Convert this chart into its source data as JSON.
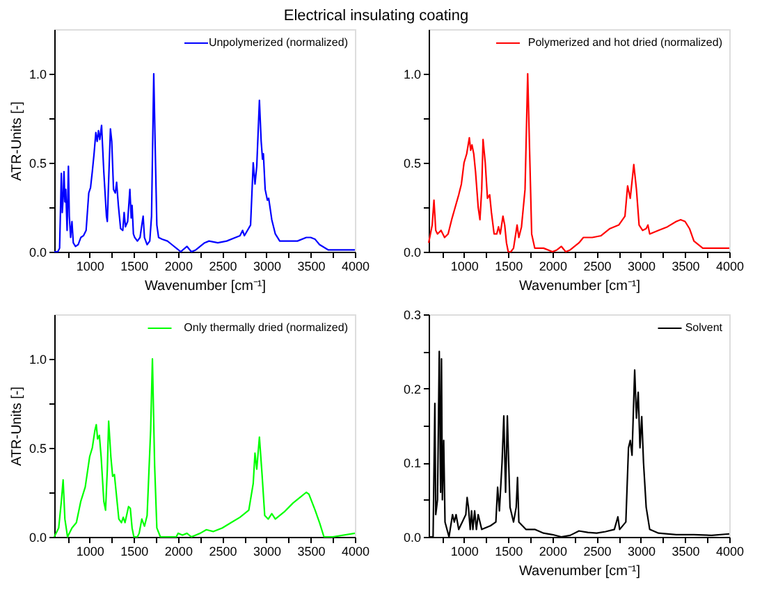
{
  "chart_data": [
    {
      "type": "line",
      "title": "Electrical insulating coating",
      "xlabel": "Wavenumber [cm⁻¹]",
      "ylabel": "ATR-Units [-]",
      "xlim": [
        600,
        4000
      ],
      "ylim": [
        0,
        1.25
      ],
      "xticks": [
        {
          "value": 750,
          "label": null
        },
        1000,
        {
          "value": 1250,
          "label": null
        },
        1500,
        {
          "value": 1750,
          "label": null
        },
        2000,
        {
          "value": 2250,
          "label": null
        },
        2500,
        {
          "value": 2750,
          "label": null
        },
        3000,
        {
          "value": 3250,
          "label": null
        },
        3500,
        {
          "value": 3750,
          "label": null
        },
        4000
      ],
      "yticks": [
        {
          "value": 0,
          "label": "0.0"
        },
        {
          "value": 0.25,
          "label": null
        },
        {
          "value": 0.5,
          "label": "0.5"
        },
        {
          "value": 0.75,
          "label": null
        },
        {
          "value": 1.0,
          "label": "1.0"
        }
      ],
      "grid": false,
      "legend": "top right",
      "marker": "none",
      "line_style": "solid",
      "series": [
        {
          "name": "Unpolymerized (normalized)",
          "color": "#0000ff",
          "x": [
            600,
            640,
            660,
            680,
            690,
            700,
            710,
            720,
            730,
            745,
            760,
            770,
            785,
            800,
            815,
            840,
            870,
            900,
            930,
            960,
            990,
            1010,
            1030,
            1050,
            1070,
            1085,
            1100,
            1115,
            1135,
            1160,
            1190,
            1200,
            1215,
            1235,
            1250,
            1270,
            1290,
            1305,
            1325,
            1350,
            1375,
            1390,
            1405,
            1430,
            1455,
            1470,
            1480,
            1495,
            1510,
            1540,
            1570,
            1590,
            1605,
            1620,
            1650,
            1680,
            1700,
            1725,
            1745,
            1760,
            1780,
            1820,
            1880,
            1930,
            1980,
            2030,
            2100,
            2150,
            2200,
            2300,
            2350,
            2450,
            2550,
            2650,
            2700,
            2730,
            2750,
            2820,
            2850,
            2870,
            2890,
            2920,
            2940,
            2955,
            2965,
            2985,
            3010,
            3025,
            3060,
            3100,
            3150,
            3250,
            3350,
            3450,
            3500,
            3550,
            3600,
            3700,
            3800,
            4000
          ],
          "values": [
            0,
            0,
            0.02,
            0.44,
            0.22,
            0.3,
            0.45,
            0.28,
            0.35,
            0.12,
            0.48,
            0.2,
            0.08,
            0.17,
            0.05,
            0.03,
            0.04,
            0.08,
            0.09,
            0.12,
            0.33,
            0.36,
            0.45,
            0.55,
            0.67,
            0.62,
            0.68,
            0.63,
            0.71,
            0.45,
            0.2,
            0.17,
            0.4,
            0.69,
            0.62,
            0.35,
            0.33,
            0.39,
            0.26,
            0.13,
            0.12,
            0.22,
            0.14,
            0.17,
            0.35,
            0.19,
            0.26,
            0.1,
            0.08,
            0.06,
            0.08,
            0.15,
            0.2,
            0.08,
            0.04,
            0.06,
            0.2,
            1.0,
            0.5,
            0.15,
            0.08,
            0.07,
            0.06,
            0.04,
            0.02,
            0,
            0.03,
            0,
            0.01,
            0.05,
            0.06,
            0.05,
            0.06,
            0.08,
            0.09,
            0.12,
            0.09,
            0.15,
            0.5,
            0.38,
            0.48,
            0.85,
            0.62,
            0.52,
            0.55,
            0.35,
            0.29,
            0.3,
            0.18,
            0.1,
            0.06,
            0.06,
            0.06,
            0.08,
            0.08,
            0.07,
            0.04,
            0.01,
            0.01,
            0.01
          ]
        }
      ]
    },
    {
      "type": "line",
      "xlabel": "Wavenumber [cm⁻¹]",
      "xlim": [
        600,
        4000
      ],
      "ylim": [
        0,
        1.25
      ],
      "xticks": [
        {
          "value": 750,
          "label": null
        },
        1000,
        {
          "value": 1250,
          "label": null
        },
        1500,
        {
          "value": 1750,
          "label": null
        },
        2000,
        {
          "value": 2250,
          "label": null
        },
        2500,
        {
          "value": 2750,
          "label": null
        },
        3000,
        {
          "value": 3250,
          "label": null
        },
        3500,
        {
          "value": 3750,
          "label": null
        },
        4000
      ],
      "yticks": [
        {
          "value": 0,
          "label": "0.0"
        },
        {
          "value": 0.25,
          "label": null
        },
        {
          "value": 0.5,
          "label": "0.5"
        },
        {
          "value": 0.75,
          "label": null
        },
        {
          "value": 1.0,
          "label": "1.0"
        }
      ],
      "grid": false,
      "legend": "top right",
      "marker": "none",
      "line_style": "solid",
      "series": [
        {
          "name": "Polymerized and hot dried (normalized)",
          "color": "#ff0000",
          "x": [
            600,
            640,
            660,
            680,
            700,
            740,
            780,
            820,
            860,
            900,
            940,
            970,
            1000,
            1030,
            1060,
            1075,
            1090,
            1110,
            1130,
            1160,
            1180,
            1200,
            1215,
            1240,
            1265,
            1290,
            1310,
            1340,
            1370,
            1390,
            1410,
            1440,
            1460,
            1480,
            1500,
            1530,
            1560,
            1600,
            1620,
            1650,
            1690,
            1720,
            1745,
            1765,
            1800,
            1900,
            2000,
            2050,
            2100,
            2150,
            2200,
            2300,
            2350,
            2450,
            2550,
            2650,
            2750,
            2820,
            2850,
            2880,
            2920,
            2950,
            2980,
            3020,
            3060,
            3080,
            3100,
            3200,
            3300,
            3400,
            3450,
            3500,
            3550,
            3600,
            3700,
            3800,
            4000
          ],
          "values": [
            0.05,
            0.15,
            0.29,
            0.12,
            0.1,
            0.12,
            0.08,
            0.1,
            0.18,
            0.25,
            0.32,
            0.38,
            0.5,
            0.55,
            0.64,
            0.57,
            0.6,
            0.55,
            0.45,
            0.25,
            0.18,
            0.35,
            0.63,
            0.5,
            0.3,
            0.32,
            0.22,
            0.1,
            0.1,
            0.14,
            0.1,
            0.2,
            0.15,
            0.05,
            0,
            0,
            0.02,
            0.15,
            0.08,
            0.14,
            0.35,
            1.0,
            0.5,
            0.1,
            0.02,
            0.02,
            0,
            0.01,
            0.03,
            0,
            0.01,
            0.05,
            0.08,
            0.08,
            0.09,
            0.13,
            0.15,
            0.2,
            0.37,
            0.3,
            0.49,
            0.35,
            0.15,
            0.12,
            0.13,
            0.15,
            0.1,
            0.12,
            0.14,
            0.17,
            0.18,
            0.17,
            0.13,
            0.06,
            0.02,
            0.02,
            0.02
          ]
        }
      ]
    },
    {
      "type": "line",
      "ylabel": "ATR-Units [-]",
      "xlim": [
        600,
        4000
      ],
      "ylim": [
        0,
        1.25
      ],
      "xticks": [
        {
          "value": 750,
          "label": null
        },
        1000,
        {
          "value": 1250,
          "label": null
        },
        1500,
        {
          "value": 1750,
          "label": null
        },
        2000,
        {
          "value": 2250,
          "label": null
        },
        2500,
        {
          "value": 2750,
          "label": null
        },
        3000,
        {
          "value": 3250,
          "label": null
        },
        3500,
        {
          "value": 3750,
          "label": null
        },
        4000
      ],
      "yticks": [
        {
          "value": 0,
          "label": "0.0"
        },
        {
          "value": 0.25,
          "label": null
        },
        {
          "value": 0.5,
          "label": "0.5"
        },
        {
          "value": 0.75,
          "label": null
        },
        {
          "value": 1.0,
          "label": "1.0"
        }
      ],
      "grid": false,
      "legend": "top right",
      "marker": "none",
      "line_style": "solid",
      "series": [
        {
          "name": "Only thermally dried (normalized)",
          "color": "#00ff00",
          "x": [
            600,
            650,
            680,
            700,
            720,
            750,
            800,
            850,
            900,
            950,
            1000,
            1030,
            1060,
            1075,
            1090,
            1110,
            1130,
            1160,
            1180,
            1200,
            1215,
            1240,
            1260,
            1280,
            1300,
            1330,
            1360,
            1380,
            1400,
            1440,
            1460,
            1480,
            1500,
            1540,
            1560,
            1590,
            1620,
            1650,
            1690,
            1710,
            1735,
            1760,
            1800,
            1980,
            2000,
            2050,
            2100,
            2150,
            2200,
            2250,
            2320,
            2400,
            2500,
            2600,
            2700,
            2800,
            2850,
            2870,
            2890,
            2920,
            2950,
            2980,
            3020,
            3060,
            3100,
            3200,
            3300,
            3400,
            3450,
            3480,
            3550,
            3600,
            3650,
            3750,
            4000
          ],
          "values": [
            0,
            0.05,
            0.2,
            0.32,
            0.1,
            0,
            0.05,
            0.08,
            0.2,
            0.28,
            0.45,
            0.5,
            0.6,
            0.63,
            0.55,
            0.57,
            0.45,
            0.2,
            0.15,
            0.38,
            0.65,
            0.45,
            0.34,
            0.35,
            0.25,
            0.1,
            0.08,
            0.11,
            0.08,
            0.17,
            0.16,
            0.05,
            0,
            0,
            0.02,
            0.1,
            0.06,
            0.12,
            0.6,
            1.0,
            0.4,
            0.05,
            0,
            0,
            0.02,
            0.01,
            0.02,
            0,
            0.01,
            0.02,
            0.04,
            0.03,
            0.05,
            0.08,
            0.11,
            0.15,
            0.3,
            0.47,
            0.38,
            0.56,
            0.35,
            0.12,
            0.1,
            0.13,
            0.1,
            0.14,
            0.19,
            0.23,
            0.25,
            0.24,
            0.15,
            0.08,
            0,
            0,
            0.02
          ]
        }
      ]
    },
    {
      "type": "line",
      "xlabel": "Wavenumber [cm⁻¹]",
      "xlim": [
        600,
        4000
      ],
      "ylim": [
        0,
        0.3
      ],
      "xticks": [
        {
          "value": 750,
          "label": null
        },
        1000,
        {
          "value": 1250,
          "label": null
        },
        1500,
        {
          "value": 1750,
          "label": null
        },
        2000,
        {
          "value": 2250,
          "label": null
        },
        2500,
        {
          "value": 2750,
          "label": null
        },
        3000,
        {
          "value": 3250,
          "label": null
        },
        3500,
        {
          "value": 3750,
          "label": null
        },
        4000
      ],
      "yticks": [
        {
          "value": 0,
          "label": "0.0"
        },
        {
          "value": 0.05,
          "label": null
        },
        {
          "value": 0.1,
          "label": "0.1"
        },
        {
          "value": 0.15,
          "label": null
        },
        {
          "value": 0.2,
          "label": "0.2"
        },
        {
          "value": 0.25,
          "label": null
        },
        {
          "value": 0.3,
          "label": "0.3"
        }
      ],
      "grid": false,
      "legend": "top right",
      "marker": "none",
      "line_style": "solid",
      "series": [
        {
          "name": "Solvent",
          "color": "#000000",
          "x": [
            600,
            650,
            670,
            680,
            700,
            720,
            735,
            745,
            755,
            770,
            785,
            830,
            870,
            890,
            910,
            940,
            980,
            1020,
            1035,
            1050,
            1070,
            1085,
            1100,
            1120,
            1140,
            1160,
            1200,
            1300,
            1360,
            1380,
            1400,
            1430,
            1450,
            1470,
            1490,
            1505,
            1520,
            1560,
            1590,
            1605,
            1620,
            1700,
            1800,
            1900,
            2000,
            2100,
            2200,
            2300,
            2400,
            2500,
            2600,
            2700,
            2740,
            2760,
            2830,
            2860,
            2880,
            2900,
            2930,
            2950,
            2970,
            2990,
            3010,
            3030,
            3060,
            3100,
            3200,
            3400,
            3600,
            3800,
            4000
          ],
          "values": [
            0,
            0,
            0.18,
            0.03,
            0.05,
            0.25,
            0.06,
            0.24,
            0.05,
            0.13,
            0.02,
            0,
            0.03,
            0.02,
            0.03,
            0.01,
            0.02,
            0.03,
            0.053,
            0.04,
            0.01,
            0.035,
            0.01,
            0.035,
            0.01,
            0.03,
            0.01,
            0.015,
            0.02,
            0.067,
            0.035,
            0.1,
            0.163,
            0.06,
            0.163,
            0.1,
            0.04,
            0.02,
            0.04,
            0.08,
            0.02,
            0.01,
            0.01,
            0.005,
            0.003,
            0,
            0.002,
            0.008,
            0.006,
            0.005,
            0.007,
            0.01,
            0.027,
            0.01,
            0.02,
            0.12,
            0.13,
            0.11,
            0.225,
            0.16,
            0.195,
            0.12,
            0.162,
            0.1,
            0.04,
            0.01,
            0.005,
            0.003,
            0.003,
            0.002,
            0.004
          ]
        }
      ]
    }
  ]
}
